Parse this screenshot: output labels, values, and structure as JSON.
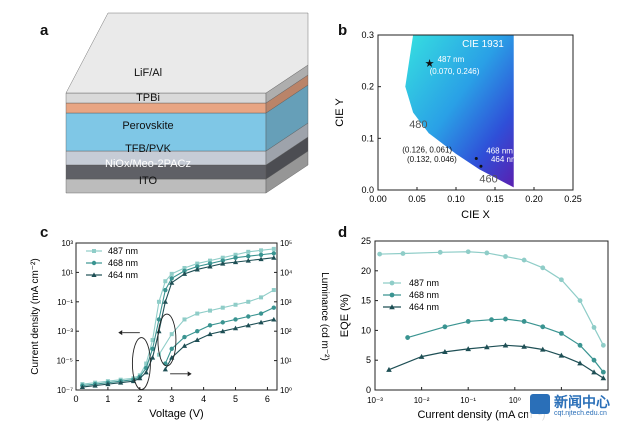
{
  "panel_labels": {
    "a": "a",
    "b": "b",
    "c": "c",
    "d": "d"
  },
  "watermark": {
    "text": "新闻中心",
    "url": "cqt.njtech.edu.cn"
  },
  "device_stack": {
    "layers": [
      {
        "label": "LiF/Al",
        "color": "#d9d9d9"
      },
      {
        "label": "TPBi",
        "color": "#e8a583"
      },
      {
        "label": "Perovskite",
        "color": "#7fc7e6"
      },
      {
        "label": "TFB/PVK",
        "color": "#c6ccd6"
      },
      {
        "label": "NiOx/Meo-2PACz",
        "color": "#5f6066"
      },
      {
        "label": "ITO",
        "color": "#bcbcbc"
      }
    ]
  },
  "chart_data": [
    {
      "type": "scatter",
      "panel": "b",
      "title": "CIE 1931",
      "xlabel": "CIE X",
      "ylabel": "CIE Y",
      "xlim": [
        0.0,
        0.25
      ],
      "ylim": [
        0.0,
        0.3
      ],
      "xticks": [
        "0.00",
        "0.05",
        "0.10",
        "0.15",
        "0.20",
        "0.25"
      ],
      "yticks": [
        "0.0",
        "0.1",
        "0.2",
        "0.3"
      ],
      "locus_labels": [
        {
          "text": "480",
          "x": 0.04,
          "y": 0.12
        },
        {
          "text": "460",
          "x": 0.13,
          "y": 0.015
        }
      ],
      "points": [
        {
          "name": "487 nm",
          "coord": "(0.070, 0.246)",
          "x": 0.07,
          "y": 0.246
        },
        {
          "name": "468 nm",
          "coord": "(0.126, 0.061)",
          "x": 0.126,
          "y": 0.061
        },
        {
          "name": "464 nm",
          "coord": "(0.132, 0.046)",
          "x": 0.132,
          "y": 0.046
        }
      ]
    },
    {
      "type": "line",
      "panel": "c",
      "xlabel": "Voltage (V)",
      "ylabel": "Current density (mA cm⁻²)",
      "ylabel_right": "Luminance (cd m⁻²)",
      "xlim": [
        0,
        6.3
      ],
      "ylim_log": [
        -7,
        3
      ],
      "ylim_right_log": [
        0,
        5
      ],
      "xticks": [
        "0",
        "1",
        "2",
        "3",
        "4",
        "5",
        "6"
      ],
      "series": [
        {
          "name": "487 nm",
          "color": "#8fcdc8",
          "voltage": [
            0.2,
            0.6,
            1.0,
            1.4,
            1.8,
            2.0,
            2.2,
            2.4,
            2.6,
            2.8,
            3.0,
            3.4,
            3.8,
            4.2,
            4.6,
            5.0,
            5.4,
            5.8,
            6.2
          ],
          "current_log": [
            -6.6,
            -6.5,
            -6.4,
            -6.3,
            -6.2,
            -6.0,
            -5.2,
            -3.6,
            -1.0,
            0.4,
            0.9,
            1.3,
            1.6,
            1.8,
            2.0,
            2.2,
            2.4,
            2.5,
            2.6
          ],
          "lum_voltage": [
            2.6,
            3.0,
            3.4,
            3.8,
            4.2,
            4.6,
            5.0,
            5.4,
            5.8,
            6.2
          ],
          "luminance_log": [
            1.2,
            1.9,
            2.4,
            2.6,
            2.7,
            2.8,
            2.9,
            3.0,
            3.15,
            3.4
          ]
        },
        {
          "name": "468 nm",
          "color": "#3a9491",
          "voltage": [
            0.2,
            0.6,
            1.0,
            1.4,
            1.8,
            2.0,
            2.2,
            2.4,
            2.6,
            2.8,
            3.0,
            3.4,
            3.8,
            4.2,
            4.6,
            5.0,
            5.4,
            5.8,
            6.2
          ],
          "current_log": [
            -6.7,
            -6.6,
            -6.5,
            -6.4,
            -6.3,
            -6.1,
            -5.5,
            -4.2,
            -2.2,
            -0.2,
            0.6,
            1.1,
            1.4,
            1.6,
            1.8,
            2.0,
            2.1,
            2.2,
            2.3
          ],
          "lum_voltage": [
            2.8,
            3.0,
            3.4,
            3.8,
            4.2,
            4.6,
            5.0,
            5.4,
            5.8,
            6.2
          ],
          "luminance_log": [
            0.9,
            1.4,
            1.8,
            2.0,
            2.2,
            2.3,
            2.4,
            2.5,
            2.6,
            2.8
          ]
        },
        {
          "name": "464 nm",
          "color": "#1e4f55",
          "voltage": [
            0.2,
            0.6,
            1.0,
            1.4,
            1.8,
            2.0,
            2.2,
            2.4,
            2.6,
            2.8,
            3.0,
            3.4,
            3.8,
            4.2,
            4.6,
            5.0,
            5.4,
            5.8,
            6.2
          ],
          "current_log": [
            -6.8,
            -6.7,
            -6.6,
            -6.5,
            -6.4,
            -6.2,
            -5.8,
            -4.8,
            -3.0,
            -1.0,
            0.3,
            0.9,
            1.2,
            1.4,
            1.6,
            1.7,
            1.8,
            1.9,
            2.0
          ],
          "lum_voltage": [
            2.8,
            3.0,
            3.4,
            3.8,
            4.2,
            4.6,
            5.0,
            5.4,
            5.8,
            6.2
          ],
          "luminance_log": [
            0.7,
            1.1,
            1.5,
            1.7,
            1.9,
            2.0,
            2.1,
            2.2,
            2.3,
            2.4
          ]
        }
      ]
    },
    {
      "type": "line",
      "panel": "d",
      "xlabel": "Current density (mA cm⁻²)",
      "ylabel": "EQE (%)",
      "xlim_log": [
        -3,
        2
      ],
      "ylim": [
        0,
        25
      ],
      "xticks": [
        "10⁻³",
        "10⁻²",
        "10⁻¹",
        "10⁰",
        "10¹"
      ],
      "yticks": [
        "0",
        "5",
        "10",
        "15",
        "20",
        "25"
      ],
      "series": [
        {
          "name": "487 nm",
          "color": "#8fcdc8",
          "x_log": [
            -2.9,
            -2.4,
            -1.6,
            -1.0,
            -0.6,
            -0.2,
            0.2,
            0.6,
            1.0,
            1.4,
            1.7,
            1.9
          ],
          "values": [
            22.8,
            22.9,
            23.1,
            23.2,
            23.0,
            22.4,
            21.8,
            20.5,
            18.5,
            15.0,
            10.5,
            7.5
          ]
        },
        {
          "name": "468 nm",
          "color": "#3a9491",
          "x_log": [
            -2.3,
            -1.5,
            -1.0,
            -0.5,
            -0.2,
            0.2,
            0.6,
            1.0,
            1.4,
            1.7,
            1.9
          ],
          "values": [
            8.8,
            10.6,
            11.5,
            11.8,
            11.9,
            11.5,
            10.6,
            9.5,
            7.5,
            5.0,
            3.0
          ]
        },
        {
          "name": "464 nm",
          "color": "#1e4f55",
          "x_log": [
            -2.7,
            -2.0,
            -1.5,
            -1.0,
            -0.6,
            -0.2,
            0.2,
            0.6,
            1.0,
            1.4,
            1.7,
            1.9
          ],
          "values": [
            3.4,
            5.6,
            6.4,
            6.9,
            7.2,
            7.5,
            7.3,
            6.8,
            5.8,
            4.5,
            3.0,
            2.0
          ]
        }
      ]
    }
  ]
}
